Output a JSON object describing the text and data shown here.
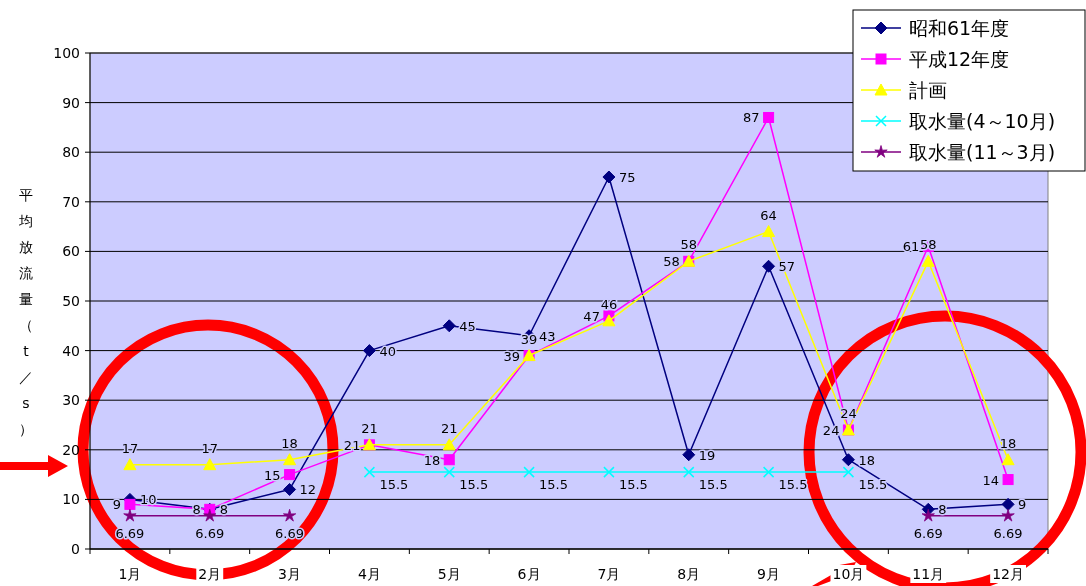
{
  "chart_data": {
    "type": "line",
    "ylabel": "平均放流量（t／s）",
    "categories": [
      "1月",
      "2月",
      "3月",
      "4月",
      "5月",
      "6月",
      "7月",
      "8月",
      "9月",
      "10月",
      "11月",
      "12月"
    ],
    "series": [
      {
        "name": "昭和61年度",
        "color": "#000080",
        "marker": "diamond",
        "values": [
          10,
          8,
          12,
          40,
          45,
          43,
          75,
          19,
          57,
          18,
          8,
          9
        ]
      },
      {
        "name": "平成12年度",
        "color": "#ff00ff",
        "marker": "square",
        "values": [
          9,
          8,
          15,
          21,
          18,
          39,
          47,
          58,
          87,
          24,
          61,
          14
        ]
      },
      {
        "name": "計画",
        "color": "#ffff00",
        "marker": "triangle",
        "values": [
          17,
          17,
          18,
          21,
          21,
          39,
          46,
          58,
          64,
          24,
          58,
          18
        ]
      },
      {
        "name": "取水量(4～10月)",
        "color": "#00ffff",
        "marker": "cross",
        "values": [
          null,
          null,
          null,
          15.5,
          15.5,
          15.5,
          15.5,
          15.5,
          15.5,
          15.5,
          null,
          null
        ]
      },
      {
        "name": "取水量(11～3月)",
        "color": "#800080",
        "marker": "star",
        "values": [
          6.69,
          6.69,
          6.69,
          null,
          null,
          null,
          null,
          null,
          null,
          null,
          6.69,
          6.69
        ]
      }
    ],
    "ylim": [
      0,
      100
    ],
    "yticks": [
      0,
      10,
      20,
      30,
      40,
      50,
      60,
      70,
      80,
      90,
      100
    ],
    "grid": "y",
    "legend": "top right",
    "data_labels": true
  }
}
